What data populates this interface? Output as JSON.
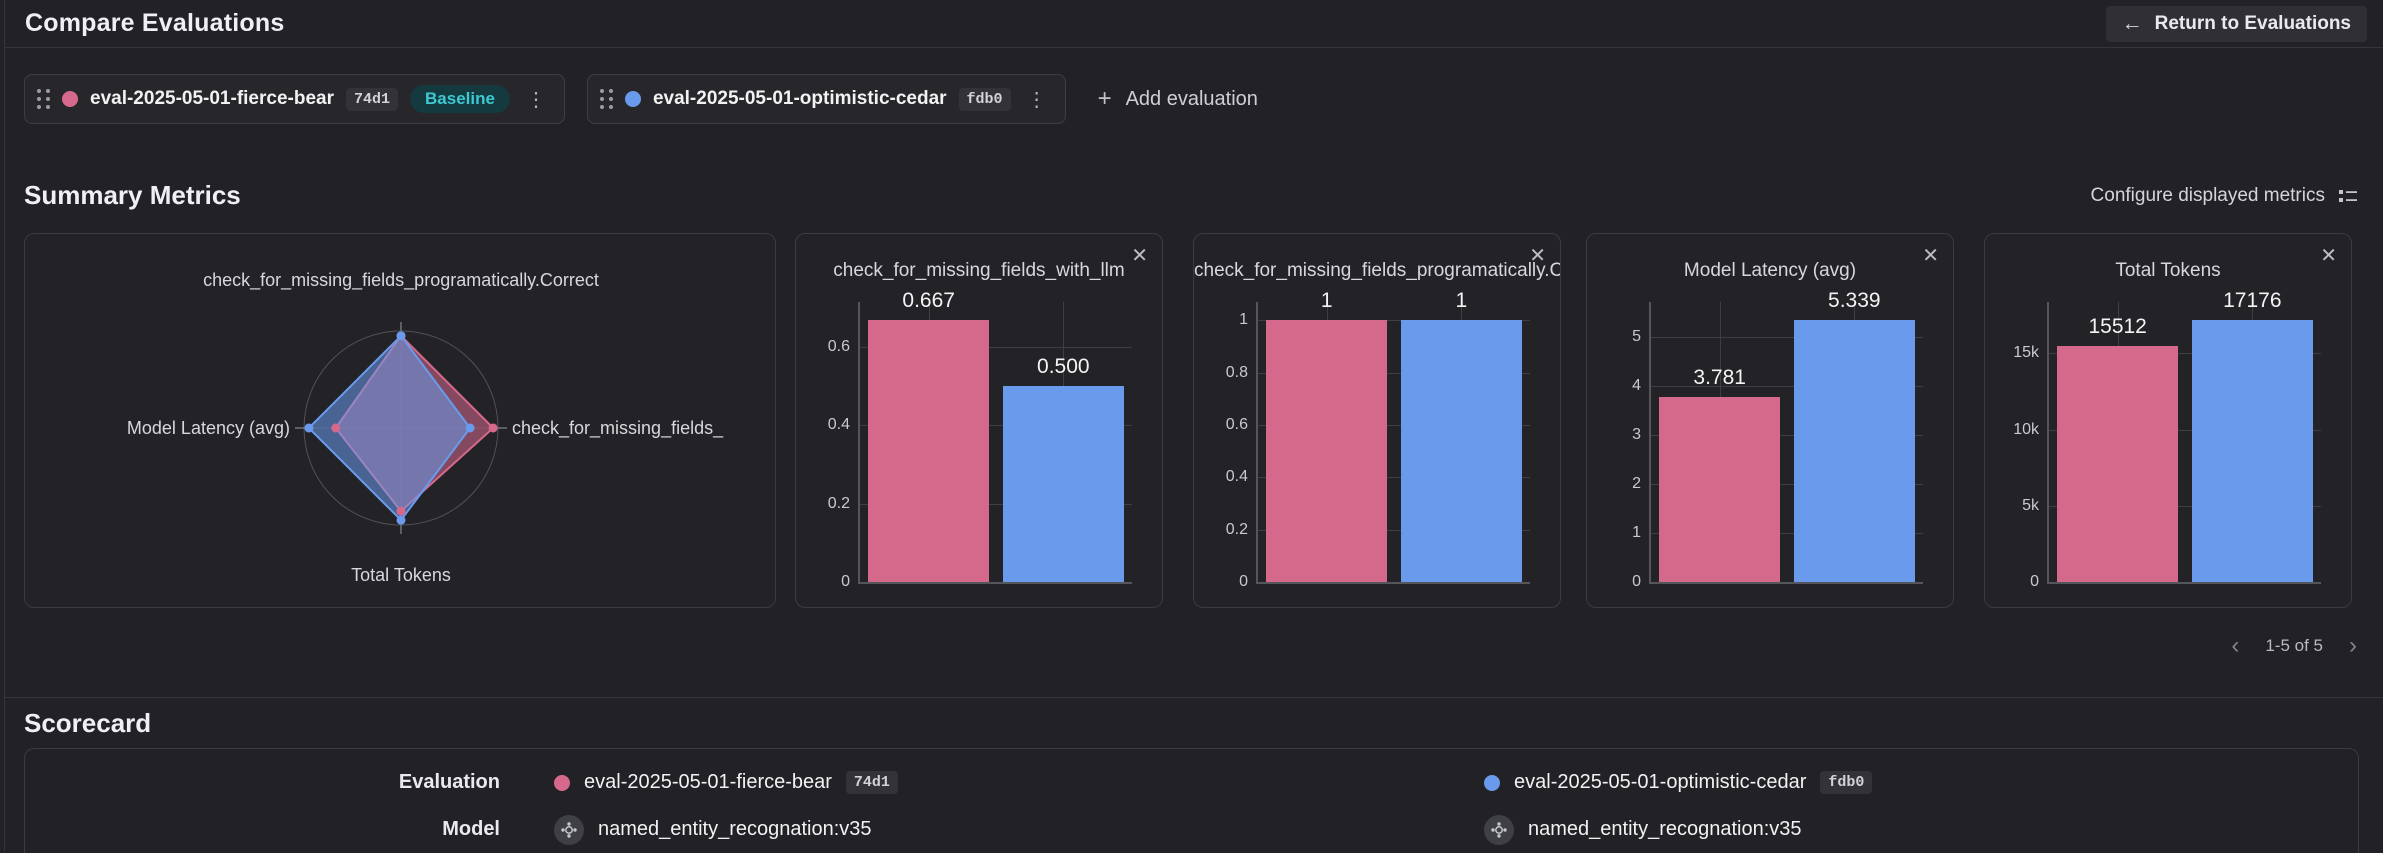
{
  "icons": {
    "back_arrow": "←",
    "plus": "+",
    "close": "✕",
    "kebab": "⋮",
    "prev": "‹",
    "next": "›"
  },
  "colors": {
    "pink": "#d5698c",
    "blue": "#6a9aec",
    "teal": "#3fc8d2"
  },
  "header": {
    "title": "Compare Evaluations",
    "return_label": "Return to Evaluations"
  },
  "evaluations": [
    {
      "name": "eval-2025-05-01-fierce-bear",
      "id": "74d1",
      "baseline": "Baseline",
      "color": "#d5698c"
    },
    {
      "name": "eval-2025-05-01-optimistic-cedar",
      "id": "fdb0",
      "baseline": null,
      "color": "#6a9aec"
    }
  ],
  "add_evaluation_label": "Add evaluation",
  "summary": {
    "title": "Summary Metrics",
    "configure_label": "Configure displayed metrics",
    "pagination_label": "1-5 of 5"
  },
  "chart_data": [
    {
      "type": "radar",
      "axes": [
        "check_for_missing_fields_programatically.Correct",
        "check_for_missing_fields_",
        "Total Tokens",
        "Model Latency (avg)"
      ],
      "series": [
        {
          "name": "eval-2025-05-01-fierce-bear",
          "color": "#d5698c",
          "values": [
            1,
            0.667,
            15512,
            3.781
          ]
        },
        {
          "name": "eval-2025-05-01-optimistic-cedar",
          "color": "#6a9aec",
          "values": [
            1,
            0.5,
            17176,
            5.339
          ]
        }
      ]
    },
    {
      "type": "bar",
      "title": "check_for_missing_fields_with_llm",
      "categories": [
        "eval-2025-05-01-fierce-bear",
        "eval-2025-05-01-optimistic-cedar"
      ],
      "values": [
        0.667,
        0.5
      ],
      "value_labels": [
        "0.667",
        "0.500"
      ],
      "colors": [
        "#d5698c",
        "#6a9aec"
      ],
      "ylim": [
        0,
        0.714
      ],
      "yticks": [
        {
          "value": 0.6,
          "label": "0.6"
        },
        {
          "value": 0.4,
          "label": "0.4"
        },
        {
          "value": 0.2,
          "label": "0.2"
        },
        {
          "value": 0,
          "label": "0"
        }
      ]
    },
    {
      "type": "bar",
      "title": "check_for_missing_fields_programatically.Correct",
      "categories": [
        "eval-2025-05-01-fierce-bear",
        "eval-2025-05-01-optimistic-cedar"
      ],
      "values": [
        1,
        1
      ],
      "value_labels": [
        "1",
        "1"
      ],
      "colors": [
        "#d5698c",
        "#6a9aec"
      ],
      "ylim": [
        0,
        1.07
      ],
      "yticks": [
        {
          "value": 1,
          "label": "1"
        },
        {
          "value": 0.8,
          "label": "0.8"
        },
        {
          "value": 0.6,
          "label": "0.6"
        },
        {
          "value": 0.4,
          "label": "0.4"
        },
        {
          "value": 0.2,
          "label": "0.2"
        },
        {
          "value": 0,
          "label": "0"
        }
      ]
    },
    {
      "type": "bar",
      "title": "Model Latency (avg)",
      "categories": [
        "eval-2025-05-01-fierce-bear",
        "eval-2025-05-01-optimistic-cedar"
      ],
      "values": [
        3.781,
        5.339
      ],
      "value_labels": [
        "3.781",
        "5.339"
      ],
      "colors": [
        "#d5698c",
        "#6a9aec"
      ],
      "ylim": [
        0,
        5.712
      ],
      "yticks": [
        {
          "value": 5,
          "label": "5"
        },
        {
          "value": 4,
          "label": "4"
        },
        {
          "value": 3,
          "label": "3"
        },
        {
          "value": 2,
          "label": "2"
        },
        {
          "value": 1,
          "label": "1"
        },
        {
          "value": 0,
          "label": "0"
        }
      ]
    },
    {
      "type": "bar",
      "title": "Total Tokens",
      "categories": [
        "eval-2025-05-01-fierce-bear",
        "eval-2025-05-01-optimistic-cedar"
      ],
      "values": [
        15512,
        17176
      ],
      "value_labels": [
        "15512",
        "17176"
      ],
      "colors": [
        "#d5698c",
        "#6a9aec"
      ],
      "ylim": [
        0,
        18378
      ],
      "yticks": [
        {
          "value": 15000,
          "label": "15k"
        },
        {
          "value": 10000,
          "label": "10k"
        },
        {
          "value": 5000,
          "label": "5k"
        },
        {
          "value": 0,
          "label": "0"
        }
      ]
    }
  ],
  "scorecard": {
    "title": "Scorecard",
    "rows": [
      {
        "label": "Evaluation",
        "type": "evaluation",
        "cells": [
          {
            "name": "eval-2025-05-01-fierce-bear",
            "id": "74d1",
            "color": "#d5698c"
          },
          {
            "name": "eval-2025-05-01-optimistic-cedar",
            "id": "fdb0",
            "color": "#6a9aec"
          }
        ]
      },
      {
        "label": "Model",
        "type": "model",
        "cells": [
          {
            "name": "named_entity_recognation:v35"
          },
          {
            "name": "named_entity_recognation:v35"
          }
        ]
      }
    ]
  }
}
